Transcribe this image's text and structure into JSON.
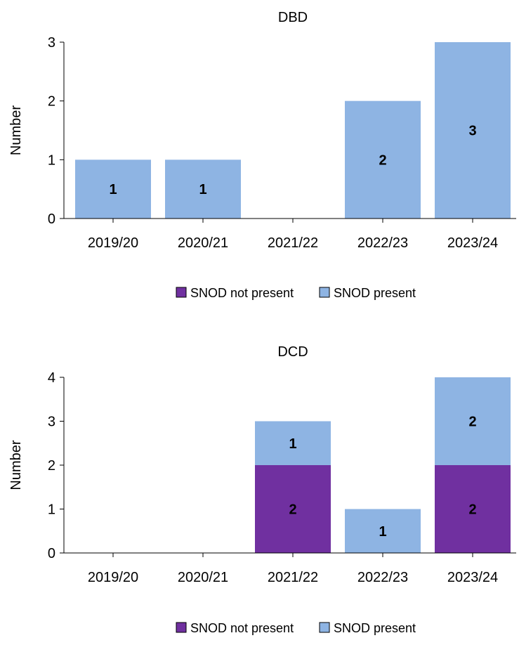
{
  "chart_data": [
    {
      "type": "bar",
      "stacked": true,
      "title": "DBD",
      "ylabel": "Number",
      "xlabel": "",
      "categories": [
        "2019/20",
        "2020/21",
        "2021/22",
        "2022/23",
        "2023/24"
      ],
      "series": [
        {
          "name": "SNOD not present",
          "color": "#7030a0",
          "values": [
            0,
            0,
            0,
            0,
            0
          ]
        },
        {
          "name": "SNOD present",
          "color": "#8eb4e3",
          "values": [
            1,
            1,
            0,
            2,
            3
          ]
        }
      ],
      "ylim": [
        0,
        3
      ],
      "yticks": [
        0,
        1,
        2,
        3
      ],
      "legend_position": "bottom",
      "grid": false
    },
    {
      "type": "bar",
      "stacked": true,
      "title": "DCD",
      "ylabel": "Number",
      "xlabel": "",
      "categories": [
        "2019/20",
        "2020/21",
        "2021/22",
        "2022/23",
        "2023/24"
      ],
      "series": [
        {
          "name": "SNOD not present",
          "color": "#7030a0",
          "values": [
            0,
            0,
            2,
            0,
            2
          ]
        },
        {
          "name": "SNOD present",
          "color": "#8eb4e3",
          "values": [
            0,
            0,
            1,
            1,
            2
          ]
        }
      ],
      "ylim": [
        0,
        4
      ],
      "yticks": [
        0,
        1,
        2,
        3,
        4
      ],
      "legend_position": "bottom",
      "grid": false
    }
  ]
}
